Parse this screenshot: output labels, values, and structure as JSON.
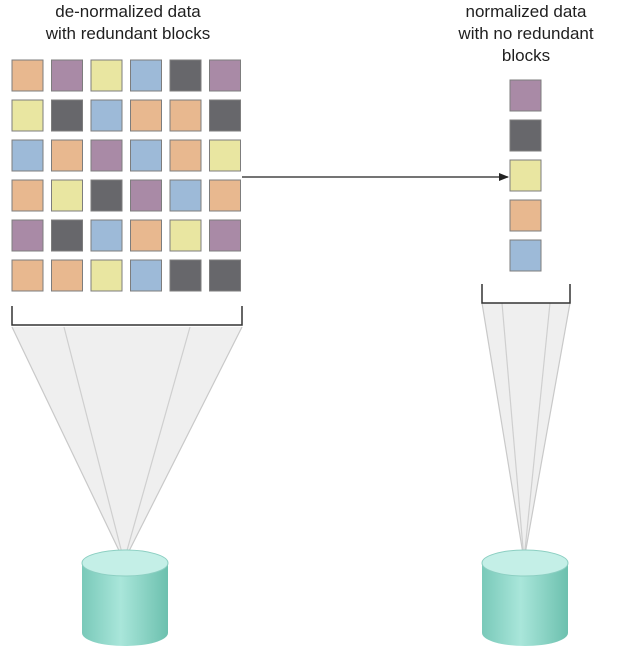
{
  "left_caption": {
    "line1": "de-normalized data",
    "line2": "with redundant blocks"
  },
  "right_caption": {
    "line1": "normalized data",
    "line2": "with no redundant",
    "line3": "blocks"
  },
  "colors": {
    "orange": "#e8b88f",
    "purple": "#a98aa6",
    "yellow": "#e9e6a1",
    "blue": "#9dbad8",
    "gray": "#67676b",
    "block_border": "#7d7d7d",
    "bracket": "#333333",
    "arrow": "#222222",
    "cone_fill": "#eeeeee",
    "cone_line": "#c9c9c9",
    "cylinder_top": "#c5f1ea",
    "cylinder_body": "#8fd6c8"
  },
  "redundant_grid": [
    [
      "orange",
      "purple",
      "yellow",
      "blue",
      "gray",
      "purple"
    ],
    [
      "yellow",
      "gray",
      "blue",
      "orange",
      "orange",
      "gray"
    ],
    [
      "blue",
      "orange",
      "purple",
      "blue",
      "orange",
      "yellow"
    ],
    [
      "orange",
      "yellow",
      "gray",
      "purple",
      "blue",
      "orange"
    ],
    [
      "purple",
      "gray",
      "blue",
      "orange",
      "yellow",
      "purple"
    ],
    [
      "orange",
      "orange",
      "yellow",
      "blue",
      "gray",
      "gray"
    ]
  ],
  "unique_blocks": [
    "purple",
    "gray",
    "yellow",
    "orange",
    "blue"
  ]
}
